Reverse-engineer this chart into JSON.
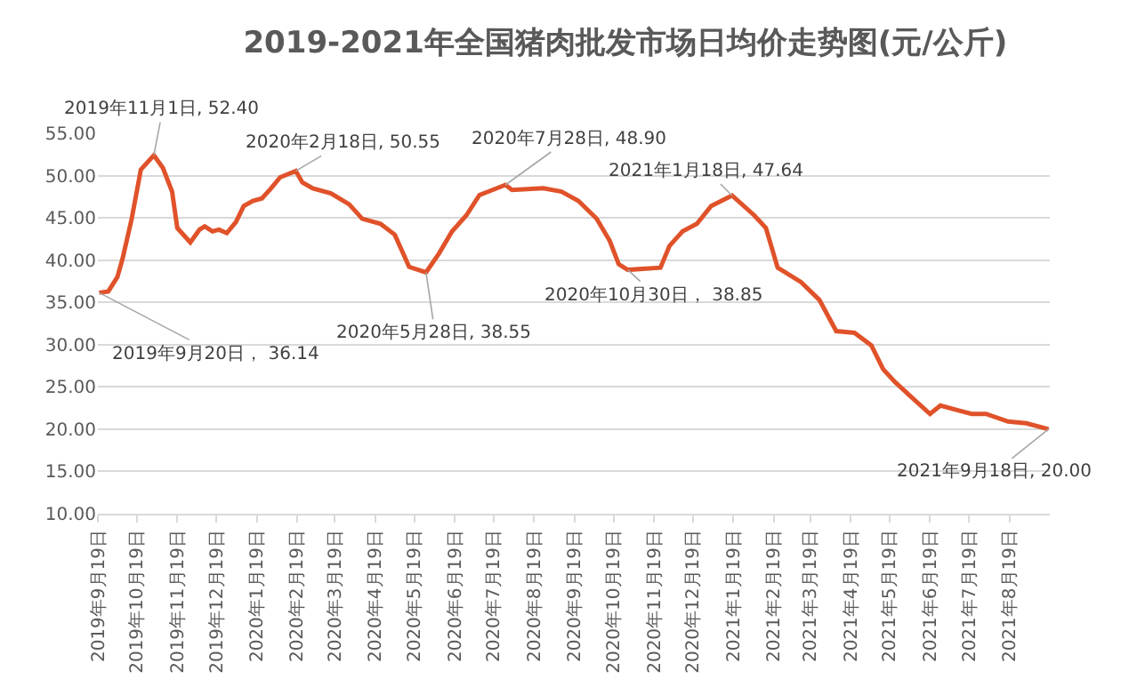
{
  "chart_data": {
    "type": "line",
    "title": "2019-2021年全国猪肉批发市场日均价走势图(元/公斤)",
    "x": [
      "2019-09-20",
      "2019-09-27",
      "2019-10-04",
      "2019-10-08",
      "2019-10-15",
      "2019-10-22",
      "2019-11-01",
      "2019-11-08",
      "2019-11-15",
      "2019-11-19",
      "2019-11-29",
      "2019-12-06",
      "2019-12-10",
      "2019-12-16",
      "2019-12-21",
      "2019-12-27",
      "2020-01-03",
      "2020-01-09",
      "2020-01-16",
      "2020-01-23",
      "2020-01-30",
      "2020-02-06",
      "2020-02-18",
      "2020-02-23",
      "2020-03-02",
      "2020-03-16",
      "2020-03-30",
      "2020-04-09",
      "2020-04-23",
      "2020-05-04",
      "2020-05-11",
      "2020-05-15",
      "2020-05-28",
      "2020-06-07",
      "2020-06-17",
      "2020-06-28",
      "2020-07-08",
      "2020-07-28",
      "2020-08-02",
      "2020-08-26",
      "2020-09-09",
      "2020-09-22",
      "2020-10-06",
      "2020-10-16",
      "2020-10-23",
      "2020-10-30",
      "2020-11-24",
      "2020-12-01",
      "2020-12-11",
      "2020-12-22",
      "2021-01-02",
      "2021-01-18",
      "2021-02-04",
      "2021-02-13",
      "2021-02-22",
      "2021-03-12",
      "2021-03-26",
      "2021-04-08",
      "2021-04-22",
      "2021-05-05",
      "2021-05-14",
      "2021-05-23",
      "2021-06-04",
      "2021-06-19",
      "2021-06-27",
      "2021-07-11",
      "2021-07-21",
      "2021-08-01",
      "2021-08-18",
      "2021-09-01",
      "2021-09-18"
    ],
    "series": [
      {
        "color": "#e0522a",
        "values": [
          36.14,
          36.3,
          38.0,
          40.2,
          44.9,
          50.7,
          52.4,
          50.9,
          48.1,
          43.8,
          42.1,
          43.6,
          44.0,
          43.4,
          43.6,
          43.2,
          44.5,
          46.4,
          47.0,
          47.3,
          48.5,
          49.8,
          50.55,
          49.2,
          48.5,
          47.9,
          46.6,
          44.9,
          44.3,
          43.0,
          40.6,
          39.2,
          38.55,
          40.8,
          43.4,
          45.3,
          47.7,
          48.9,
          48.3,
          48.5,
          48.1,
          47.0,
          44.9,
          42.3,
          39.5,
          38.85,
          39.1,
          41.7,
          43.4,
          44.3,
          46.4,
          47.64,
          45.3,
          43.8,
          39.1,
          37.4,
          35.3,
          31.6,
          31.4,
          29.9,
          27.1,
          25.6,
          23.9,
          21.8,
          22.8,
          22.2,
          21.8,
          21.8,
          20.9,
          20.7,
          20.0
        ]
      }
    ],
    "xlim": [
      "2019-09-19",
      "2021-09-19"
    ],
    "xticks": [
      {
        "value": "2019-09-19",
        "label": "2019年9月19日"
      },
      {
        "value": "2019-10-19",
        "label": "2019年10月19日"
      },
      {
        "value": "2019-11-19",
        "label": "2019年11月19日"
      },
      {
        "value": "2019-12-19",
        "label": "2019年12月19日"
      },
      {
        "value": "2020-01-19",
        "label": "2020年1月19日"
      },
      {
        "value": "2020-02-19",
        "label": "2020年2月19日"
      },
      {
        "value": "2020-03-19",
        "label": "2020年3月19日"
      },
      {
        "value": "2020-04-19",
        "label": "2020年4月19日"
      },
      {
        "value": "2020-05-19",
        "label": "2020年5月19日"
      },
      {
        "value": "2020-06-19",
        "label": "2020年6月19日"
      },
      {
        "value": "2020-07-19",
        "label": "2020年7月19日"
      },
      {
        "value": "2020-08-19",
        "label": "2020年8月19日"
      },
      {
        "value": "2020-09-19",
        "label": "2020年9月19日"
      },
      {
        "value": "2020-10-19",
        "label": "2020年10月19日"
      },
      {
        "value": "2020-11-19",
        "label": "2020年11月19日"
      },
      {
        "value": "2020-12-19",
        "label": "2020年12月19日"
      },
      {
        "value": "2021-01-19",
        "label": "2021年1月19日"
      },
      {
        "value": "2021-02-19",
        "label": "2021年2月19日"
      },
      {
        "value": "2021-03-19",
        "label": "2021年3月19日"
      },
      {
        "value": "2021-04-19",
        "label": "2021年4月19日"
      },
      {
        "value": "2021-05-19",
        "label": "2021年5月19日"
      },
      {
        "value": "2021-06-19",
        "label": "2021年6月19日"
      },
      {
        "value": "2021-07-19",
        "label": "2021年7月19日"
      },
      {
        "value": "2021-08-19",
        "label": "2021年8月19日"
      }
    ],
    "ylim": [
      10,
      55
    ],
    "yticks": [
      {
        "value": 10,
        "label": "10.00"
      },
      {
        "value": 15,
        "label": "15.00"
      },
      {
        "value": 20,
        "label": "20.00"
      },
      {
        "value": 25,
        "label": "25.00"
      },
      {
        "value": 30,
        "label": "30.00"
      },
      {
        "value": 35,
        "label": "35.00"
      },
      {
        "value": 40,
        "label": "40.00"
      },
      {
        "value": 45,
        "label": "45.00"
      },
      {
        "value": 50,
        "label": "50.00"
      },
      {
        "value": 55,
        "label": "55.00"
      }
    ],
    "grid": "y",
    "marker": "none",
    "line_style": "solid",
    "annotations": [
      {
        "text": "2019年9月20日， 36.14",
        "x": "2019-09-20",
        "y": 36.14
      },
      {
        "text": "2019年11月1日, 52.40",
        "x": "2019-11-01",
        "y": 52.4
      },
      {
        "text": "2020年2月18日, 50.55",
        "x": "2020-02-18",
        "y": 50.55
      },
      {
        "text": "2020年5月28日, 38.55",
        "x": "2020-05-28",
        "y": 38.55
      },
      {
        "text": "2020年7月28日, 48.90",
        "x": "2020-07-28",
        "y": 48.9
      },
      {
        "text": "2020年10月30日， 38.85",
        "x": "2020-10-30",
        "y": 38.85
      },
      {
        "text": "2021年1月18日, 47.64",
        "x": "2021-01-18",
        "y": 47.64
      },
      {
        "text": "2021年9月18日, 20.00",
        "x": "2021-09-18",
        "y": 20.0
      }
    ]
  }
}
